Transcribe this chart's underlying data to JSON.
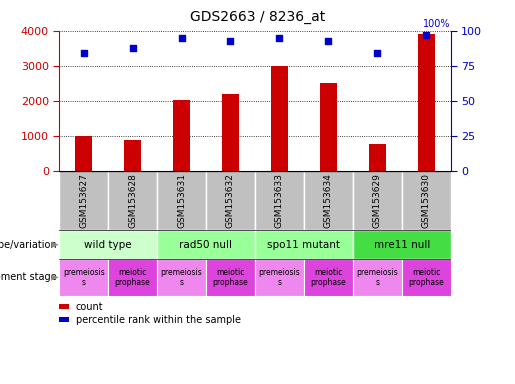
{
  "title": "GDS2663 / 8236_at",
  "samples": [
    "GSM153627",
    "GSM153628",
    "GSM153631",
    "GSM153632",
    "GSM153633",
    "GSM153634",
    "GSM153629",
    "GSM153630"
  ],
  "counts": [
    1000,
    870,
    2020,
    2180,
    2980,
    2520,
    760,
    3900
  ],
  "percentiles": [
    84,
    88,
    95,
    93,
    95,
    93,
    84,
    97
  ],
  "ylim_left": [
    0,
    4000
  ],
  "ylim_right": [
    0,
    100
  ],
  "yticks_left": [
    0,
    1000,
    2000,
    3000,
    4000
  ],
  "yticks_right": [
    0,
    25,
    50,
    75,
    100
  ],
  "bar_color": "#cc0000",
  "dot_color": "#0000cc",
  "genotype_groups": [
    {
      "label": "wild type",
      "start": 0,
      "end": 2,
      "color": "#ccffcc"
    },
    {
      "label": "rad50 null",
      "start": 2,
      "end": 4,
      "color": "#99ff99"
    },
    {
      "label": "spo11 mutant",
      "start": 4,
      "end": 6,
      "color": "#99ff99"
    },
    {
      "label": "mre11 null",
      "start": 6,
      "end": 8,
      "color": "#44dd44"
    }
  ],
  "dev_stage_groups": [
    {
      "label": "premeiosis\ns",
      "start": 0,
      "end": 1,
      "color": "#ee88ee"
    },
    {
      "label": "meiotic\nprophase",
      "start": 1,
      "end": 2,
      "color": "#dd44dd"
    },
    {
      "label": "premeiosis\ns",
      "start": 2,
      "end": 3,
      "color": "#ee88ee"
    },
    {
      "label": "meiotic\nprophase",
      "start": 3,
      "end": 4,
      "color": "#dd44dd"
    },
    {
      "label": "premeiosis\ns",
      "start": 4,
      "end": 5,
      "color": "#ee88ee"
    },
    {
      "label": "meiotic\nprophase",
      "start": 5,
      "end": 6,
      "color": "#dd44dd"
    },
    {
      "label": "premeiosis\ns",
      "start": 6,
      "end": 7,
      "color": "#ee88ee"
    },
    {
      "label": "meiotic\nprophase",
      "start": 7,
      "end": 8,
      "color": "#dd44dd"
    }
  ],
  "left_label_genotype": "genotype/variation",
  "left_label_devstage": "development stage",
  "legend_count_label": "count",
  "legend_pct_label": "percentile rank within the sample"
}
